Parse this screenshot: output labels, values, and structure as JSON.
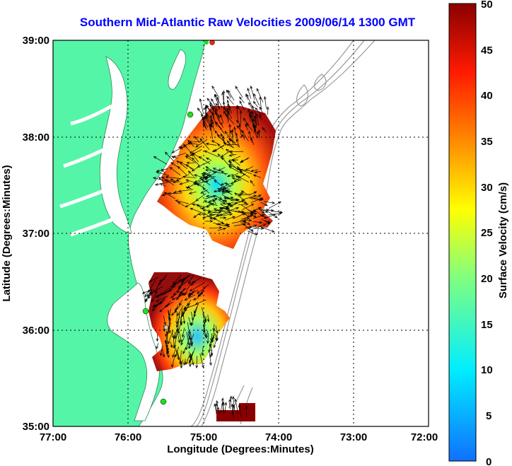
{
  "title": "Southern Mid-Atlantic Raw Velocities 2009/06/14 1300 GMT",
  "xaxis": {
    "label": "Longitude (Degrees:Minutes)",
    "ticks": [
      "77:00",
      "76:00",
      "75:00",
      "74:00",
      "73:00",
      "72:00"
    ]
  },
  "yaxis": {
    "label": "Latitude (Degrees:Minutes)",
    "ticks": [
      "39:00",
      "38:00",
      "37:00",
      "36:00",
      "35:00"
    ]
  },
  "colorbar": {
    "label": "Surface Velocity (cm/s)",
    "ticks": [
      "50",
      "45",
      "40",
      "35",
      "30",
      "25",
      "20",
      "15",
      "10",
      "5",
      "0"
    ],
    "range": [
      0,
      50
    ]
  },
  "extent": {
    "lon": [
      -77,
      -72
    ],
    "lat": [
      35,
      39
    ]
  },
  "colors": {
    "title": "#0000ff",
    "land": "#55f5a8",
    "water": "#ffffff",
    "coast_line": "#2e8b57",
    "bathymetry": "#9a9a9a",
    "grid": "#000000",
    "station": "#22dd22"
  }
}
